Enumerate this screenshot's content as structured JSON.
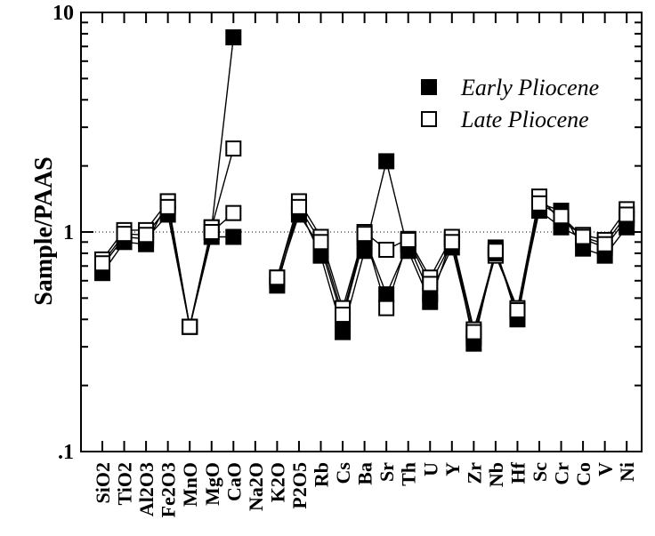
{
  "chart_data": {
    "type": "line",
    "title": "",
    "xlabel": "",
    "ylabel": "Sample/PAAS",
    "yscale": "log",
    "ylim": [
      0.1,
      10
    ],
    "y_ticks": [
      {
        "value": 10,
        "label": "10"
      },
      {
        "value": 1,
        "label": "1"
      },
      {
        "value": 0.1,
        "label": ".1"
      }
    ],
    "reference_line": {
      "y": 1,
      "style": "dotted"
    },
    "categories": [
      "SiO2",
      "TiO2",
      "Al2O3",
      "Fe2O3",
      "MnO",
      "MgO",
      "CaO",
      "Na2O",
      "K2O",
      "P2O5",
      "Rb",
      "Cs",
      "Ba",
      "Sr",
      "Th",
      "U",
      "Y",
      "Zr",
      "Nb",
      "Hf",
      "Sc",
      "Cr",
      "Co",
      "V",
      "Ni"
    ],
    "legend": {
      "placement": "top-right"
    },
    "series": [
      {
        "name": "Early Pliocene",
        "marker": "filled-square",
        "show_in_legend": true,
        "values": [
          0.65,
          0.9,
          0.88,
          1.38,
          0.37,
          1.05,
          7.7,
          null,
          0.57,
          1.28,
          0.78,
          0.35,
          0.82,
          2.1,
          0.82,
          0.48,
          0.93,
          0.31,
          0.85,
          0.4,
          1.35,
          1.25,
          0.84,
          0.78,
          1.05
        ]
      },
      {
        "name": "Late Pliocene",
        "marker": "open-square",
        "show_in_legend": true,
        "values": [
          0.75,
          1.02,
          1.02,
          1.38,
          0.37,
          1.05,
          2.4,
          null,
          0.62,
          1.38,
          0.95,
          0.45,
          1.0,
          0.83,
          0.93,
          0.62,
          0.95,
          0.36,
          0.78,
          0.45,
          1.45,
          1.12,
          0.97,
          0.92,
          1.27
        ]
      },
      {
        "name": "",
        "marker": "filled-square",
        "show_in_legend": false,
        "values": [
          0.7,
          0.95,
          0.93,
          1.2,
          0.37,
          0.95,
          0.95,
          null,
          0.6,
          1.2,
          0.85,
          0.4,
          0.95,
          0.52,
          0.88,
          0.52,
          0.85,
          0.33,
          0.8,
          0.43,
          1.25,
          1.05,
          0.93,
          0.85,
          1.15
        ]
      },
      {
        "name": "",
        "marker": "open-square",
        "show_in_legend": false,
        "values": [
          0.72,
          0.98,
          0.97,
          1.3,
          0.37,
          1.0,
          1.22,
          null,
          0.62,
          1.3,
          0.9,
          0.42,
          0.98,
          0.45,
          0.92,
          0.58,
          0.9,
          0.35,
          0.82,
          0.44,
          1.35,
          1.18,
          0.95,
          0.88,
          1.2
        ]
      }
    ]
  }
}
